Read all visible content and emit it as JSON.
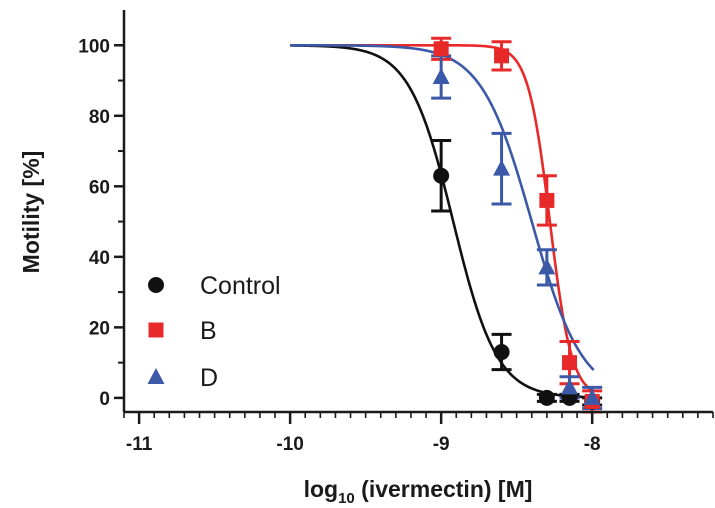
{
  "chart_data": {
    "type": "scatter",
    "xlabel": {
      "prefix": "log",
      "subscript": "10",
      "suffix": " (ivermectin) [M]"
    },
    "ylabel": "Motility [%]",
    "xlim": [
      -11.1,
      -7.2
    ],
    "ylim": [
      -4,
      110
    ],
    "xticks": [
      -11,
      -10,
      -9,
      -8
    ],
    "yticks": [
      0,
      20,
      40,
      60,
      80,
      100
    ],
    "grid": false,
    "legend": {
      "position": "bottom-left"
    },
    "series": [
      {
        "name": "Control",
        "color": "#111111",
        "marker": "circle",
        "fit": {
          "top": 100,
          "bottom": 0,
          "logEC50": -8.92,
          "hill": 3.0
        },
        "points": [
          {
            "x": -9.0,
            "y": 63,
            "err": 10
          },
          {
            "x": -8.6,
            "y": 13,
            "err": 5
          },
          {
            "x": -8.3,
            "y": 0,
            "err": 1
          },
          {
            "x": -8.15,
            "y": 0,
            "err": 1
          },
          {
            "x": -8.0,
            "y": -1,
            "err": 1
          }
        ]
      },
      {
        "name": "B",
        "color": "#e8292a",
        "marker": "square",
        "fit": {
          "top": 100,
          "bottom": 0,
          "logEC50": -8.28,
          "hill": 6.0
        },
        "points": [
          {
            "x": -9.0,
            "y": 99,
            "err": 3
          },
          {
            "x": -8.6,
            "y": 97,
            "err": 4
          },
          {
            "x": -8.3,
            "y": 56,
            "err": 7
          },
          {
            "x": -8.15,
            "y": 10,
            "err": 6
          },
          {
            "x": -8.0,
            "y": -1,
            "err": 3
          }
        ]
      },
      {
        "name": "D",
        "color": "#3c59a8",
        "marker": "triangle",
        "fit": {
          "top": 100,
          "bottom": 0,
          "logEC50": -8.4,
          "hill": 2.6
        },
        "points": [
          {
            "x": -9.0,
            "y": 91,
            "err": 6
          },
          {
            "x": -8.6,
            "y": 65,
            "err": 10
          },
          {
            "x": -8.3,
            "y": 37,
            "err": 5
          },
          {
            "x": -8.15,
            "y": 3,
            "err": 3
          },
          {
            "x": -8.0,
            "y": 0,
            "err": 3
          }
        ]
      }
    ]
  }
}
